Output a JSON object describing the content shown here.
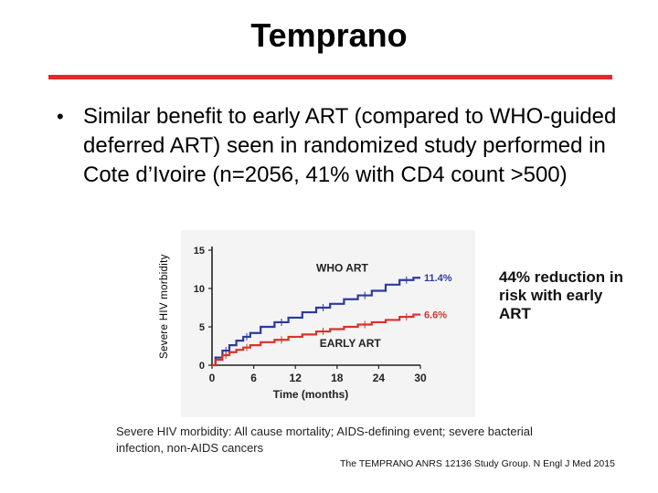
{
  "slide": {
    "title": "Temprano",
    "bullet_marker": "•",
    "bullet_text": "Similar benefit to early ART (compared to WHO-guided deferred ART) seen in randomized study performed in Cote d’Ivoire (n=2056, 41% with CD4 count >500)",
    "callout": "44% reduction in risk with early ART",
    "footnote": "Severe HIV morbidity: All cause mortality; AIDS-defining event; severe bacterial infection, non-AIDS cancers",
    "citation": "The TEMPRANO ANRS 12136 Study Group. N Engl J Med 2015",
    "colors": {
      "accent": "#e8262e",
      "who_series": "#2b3a9e",
      "early_series": "#d8322a"
    }
  },
  "chart_data": {
    "type": "line",
    "title": "",
    "xlabel": "Time (months)",
    "ylabel": "Severe HIV morbidity",
    "xlim": [
      0,
      30
    ],
    "ylim": [
      0,
      15
    ],
    "xticks": [
      0,
      6,
      12,
      18,
      24,
      30
    ],
    "yticks": [
      0,
      5,
      10,
      15
    ],
    "series": [
      {
        "name": "WHO ART",
        "end_label": "11.4%",
        "x": [
          0,
          1,
          2,
          3,
          4,
          5,
          6,
          8,
          10,
          12,
          14,
          16,
          18,
          20,
          22,
          24,
          26,
          28,
          30
        ],
        "values": [
          0,
          1.0,
          1.9,
          2.6,
          3.2,
          3.7,
          4.2,
          5.0,
          5.6,
          6.2,
          6.9,
          7.5,
          8.0,
          8.6,
          9.1,
          9.7,
          10.5,
          11.1,
          11.4
        ]
      },
      {
        "name": "EARLY ART",
        "end_label": "6.6%",
        "x": [
          0,
          1,
          2,
          3,
          4,
          5,
          6,
          8,
          10,
          12,
          14,
          16,
          18,
          20,
          22,
          24,
          26,
          28,
          30
        ],
        "values": [
          0,
          0.7,
          1.3,
          1.7,
          2.0,
          2.3,
          2.6,
          3.0,
          3.3,
          3.7,
          4.0,
          4.4,
          4.7,
          5.0,
          5.3,
          5.6,
          5.9,
          6.3,
          6.6
        ]
      }
    ]
  }
}
